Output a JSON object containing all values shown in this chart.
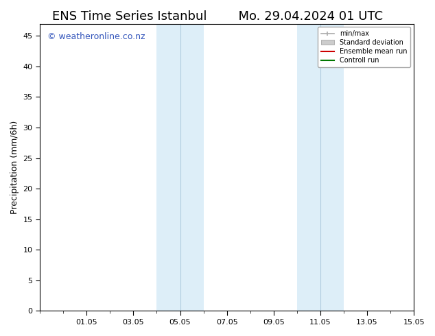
{
  "title_left": "ENS Time Series Istanbul",
  "title_right": "Mo. 29.04.2024 01 UTC",
  "ylabel": "Precipitation (mm/6h)",
  "ylim": [
    0,
    47
  ],
  "yticks": [
    0,
    5,
    10,
    15,
    20,
    25,
    30,
    35,
    40,
    45
  ],
  "xtick_labels": [
    "01.05",
    "03.05",
    "05.05",
    "07.05",
    "09.05",
    "11.05",
    "13.05",
    "15.05"
  ],
  "xtick_days_from_start": [
    2,
    4,
    6,
    8,
    10,
    12,
    14,
    16
  ],
  "x_total_days": 16.0,
  "shaded_regions": [
    {
      "x_start": 5.0,
      "x_end": 7.0
    },
    {
      "x_start": 11.0,
      "x_end": 13.0
    }
  ],
  "shade_color": "#ddeef8",
  "shade_divider_color": "#b0cce0",
  "bg_color": "#ffffff",
  "watermark": "© weatheronline.co.nz",
  "watermark_color": "#3355bb",
  "title_fontsize": 13,
  "tick_fontsize": 8,
  "ylabel_fontsize": 9,
  "watermark_fontsize": 9,
  "legend_minmax_color": "#aaaaaa",
  "legend_std_color": "#cccccc",
  "legend_ensemble_color": "#cc0000",
  "legend_control_color": "#007700"
}
